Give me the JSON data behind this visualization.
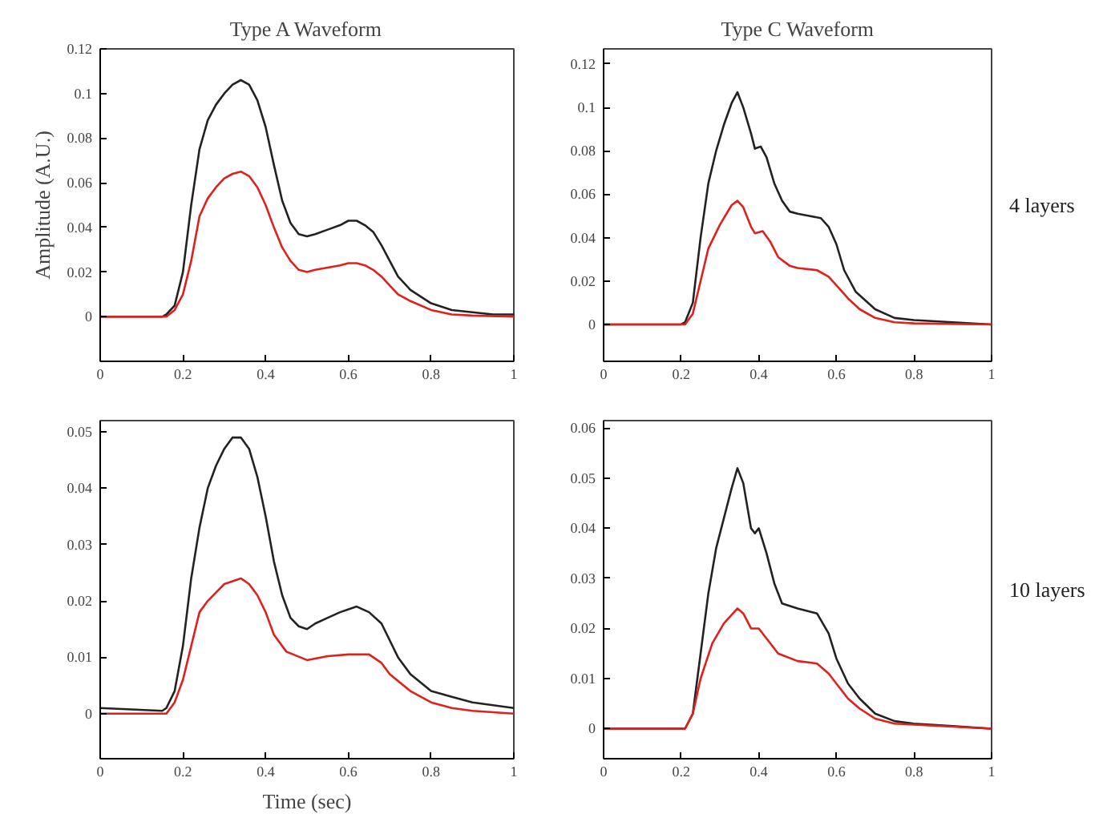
{
  "chart_data": [
    {
      "type": "line",
      "title": "Type A Waveform",
      "ylabel": "Amplitude (A.U.)",
      "xlim": [
        0,
        1
      ],
      "ylim": [
        -0.02,
        0.12
      ],
      "xticks": [
        0,
        0.2,
        0.4,
        0.6,
        0.8,
        1
      ],
      "yticks": [
        0,
        0.02,
        0.04,
        0.06,
        0.08,
        0.1,
        0.12
      ],
      "grid": false,
      "series": [
        {
          "color": "#222222",
          "x": [
            0,
            0.15,
            0.16,
            0.18,
            0.2,
            0.22,
            0.24,
            0.26,
            0.28,
            0.3,
            0.32,
            0.34,
            0.36,
            0.38,
            0.4,
            0.42,
            0.44,
            0.46,
            0.48,
            0.5,
            0.52,
            0.55,
            0.58,
            0.6,
            0.62,
            0.64,
            0.66,
            0.68,
            0.7,
            0.72,
            0.75,
            0.8,
            0.85,
            0.9,
            0.95,
            1
          ],
          "values": [
            0,
            0,
            0.001,
            0.005,
            0.02,
            0.05,
            0.075,
            0.088,
            0.095,
            0.1,
            0.104,
            0.106,
            0.104,
            0.097,
            0.085,
            0.068,
            0.052,
            0.042,
            0.037,
            0.036,
            0.037,
            0.039,
            0.041,
            0.043,
            0.043,
            0.041,
            0.038,
            0.032,
            0.025,
            0.018,
            0.012,
            0.006,
            0.003,
            0.002,
            0.001,
            0.001
          ]
        },
        {
          "color": "#e0201c",
          "x": [
            0,
            0.16,
            0.18,
            0.2,
            0.22,
            0.24,
            0.26,
            0.28,
            0.3,
            0.32,
            0.34,
            0.36,
            0.38,
            0.4,
            0.42,
            0.44,
            0.46,
            0.48,
            0.5,
            0.52,
            0.55,
            0.58,
            0.6,
            0.62,
            0.64,
            0.66,
            0.68,
            0.7,
            0.72,
            0.75,
            0.8,
            0.85,
            0.9,
            1
          ],
          "values": [
            0,
            0,
            0.003,
            0.01,
            0.025,
            0.045,
            0.053,
            0.058,
            0.062,
            0.064,
            0.065,
            0.063,
            0.058,
            0.05,
            0.04,
            0.031,
            0.025,
            0.021,
            0.02,
            0.021,
            0.022,
            0.023,
            0.024,
            0.024,
            0.023,
            0.021,
            0.018,
            0.014,
            0.01,
            0.007,
            0.003,
            0.001,
            0.0005,
            0
          ]
        }
      ]
    },
    {
      "type": "line",
      "title": "Type C Waveform",
      "annotations": [
        "4 layers"
      ],
      "xlim": [
        0,
        1
      ],
      "ylim": [
        -0.017,
        0.127
      ],
      "xticks": [
        0,
        0.2,
        0.4,
        0.6,
        0.8,
        1
      ],
      "yticks": [
        0,
        0.02,
        0.04,
        0.06,
        0.08,
        0.1,
        0.12
      ],
      "grid": false,
      "series": [
        {
          "color": "#222222",
          "x": [
            0,
            0.2,
            0.21,
            0.23,
            0.25,
            0.27,
            0.29,
            0.31,
            0.33,
            0.345,
            0.36,
            0.38,
            0.39,
            0.405,
            0.42,
            0.44,
            0.46,
            0.48,
            0.5,
            0.53,
            0.56,
            0.58,
            0.6,
            0.62,
            0.65,
            0.7,
            0.75,
            0.8,
            0.9,
            1
          ],
          "values": [
            0,
            0,
            0.001,
            0.01,
            0.04,
            0.065,
            0.08,
            0.092,
            0.102,
            0.107,
            0.1,
            0.088,
            0.081,
            0.082,
            0.077,
            0.065,
            0.057,
            0.052,
            0.051,
            0.05,
            0.049,
            0.045,
            0.037,
            0.025,
            0.015,
            0.007,
            0.003,
            0.002,
            0.001,
            0
          ]
        },
        {
          "color": "#e0201c",
          "x": [
            0,
            0.21,
            0.23,
            0.25,
            0.27,
            0.3,
            0.33,
            0.345,
            0.36,
            0.38,
            0.39,
            0.41,
            0.43,
            0.45,
            0.48,
            0.5,
            0.55,
            0.58,
            0.6,
            0.63,
            0.66,
            0.7,
            0.75,
            0.8,
            1
          ],
          "values": [
            0,
            0,
            0.005,
            0.02,
            0.035,
            0.046,
            0.055,
            0.057,
            0.054,
            0.045,
            0.042,
            0.043,
            0.038,
            0.031,
            0.027,
            0.026,
            0.025,
            0.022,
            0.018,
            0.012,
            0.007,
            0.003,
            0.001,
            0.0005,
            0
          ]
        }
      ]
    },
    {
      "type": "line",
      "xlabel": "Time (sec)",
      "xlim": [
        0,
        1
      ],
      "ylim": [
        -0.008,
        0.052
      ],
      "xticks": [
        0,
        0.2,
        0.4,
        0.6,
        0.8,
        1
      ],
      "yticks": [
        0,
        0.01,
        0.02,
        0.03,
        0.04,
        0.05
      ],
      "grid": false,
      "series": [
        {
          "color": "#222222",
          "x": [
            0,
            0.15,
            0.16,
            0.18,
            0.2,
            0.22,
            0.24,
            0.26,
            0.28,
            0.3,
            0.32,
            0.34,
            0.36,
            0.38,
            0.4,
            0.42,
            0.44,
            0.46,
            0.48,
            0.5,
            0.52,
            0.55,
            0.58,
            0.62,
            0.65,
            0.68,
            0.7,
            0.72,
            0.75,
            0.8,
            0.85,
            0.9,
            1
          ],
          "values": [
            0.001,
            0.0005,
            0.001,
            0.004,
            0.012,
            0.024,
            0.033,
            0.04,
            0.044,
            0.047,
            0.049,
            0.049,
            0.047,
            0.042,
            0.035,
            0.027,
            0.021,
            0.017,
            0.0155,
            0.015,
            0.016,
            0.017,
            0.018,
            0.019,
            0.018,
            0.016,
            0.013,
            0.01,
            0.007,
            0.004,
            0.003,
            0.002,
            0.001
          ]
        },
        {
          "color": "#e0201c",
          "x": [
            0,
            0.16,
            0.18,
            0.2,
            0.22,
            0.24,
            0.26,
            0.3,
            0.34,
            0.36,
            0.38,
            0.4,
            0.42,
            0.45,
            0.5,
            0.55,
            0.6,
            0.65,
            0.68,
            0.7,
            0.75,
            0.8,
            0.85,
            0.9,
            1
          ],
          "values": [
            0,
            0,
            0.002,
            0.006,
            0.012,
            0.018,
            0.02,
            0.023,
            0.024,
            0.023,
            0.021,
            0.018,
            0.014,
            0.011,
            0.0095,
            0.0102,
            0.0105,
            0.0105,
            0.009,
            0.007,
            0.004,
            0.002,
            0.001,
            0.0005,
            0
          ]
        }
      ]
    },
    {
      "type": "line",
      "annotations": [
        "10 layers"
      ],
      "xlim": [
        0,
        1
      ],
      "ylim": [
        -0.006,
        0.0615
      ],
      "xticks": [
        0,
        0.2,
        0.4,
        0.6,
        0.8,
        1
      ],
      "yticks": [
        0,
        0.01,
        0.02,
        0.03,
        0.04,
        0.05,
        0.06
      ],
      "grid": false,
      "series": [
        {
          "color": "#222222",
          "x": [
            0,
            0.21,
            0.23,
            0.25,
            0.27,
            0.29,
            0.31,
            0.33,
            0.345,
            0.36,
            0.38,
            0.39,
            0.4,
            0.42,
            0.44,
            0.46,
            0.5,
            0.55,
            0.58,
            0.6,
            0.63,
            0.66,
            0.7,
            0.75,
            0.8,
            0.9,
            1
          ],
          "values": [
            0,
            0,
            0.003,
            0.015,
            0.027,
            0.036,
            0.042,
            0.048,
            0.052,
            0.049,
            0.04,
            0.039,
            0.04,
            0.035,
            0.029,
            0.025,
            0.024,
            0.023,
            0.019,
            0.014,
            0.009,
            0.006,
            0.003,
            0.0015,
            0.001,
            0.0005,
            0
          ]
        },
        {
          "color": "#e0201c",
          "x": [
            0,
            0.21,
            0.23,
            0.25,
            0.28,
            0.31,
            0.345,
            0.36,
            0.38,
            0.4,
            0.42,
            0.45,
            0.5,
            0.55,
            0.58,
            0.6,
            0.63,
            0.66,
            0.7,
            0.75,
            1
          ],
          "values": [
            0,
            0,
            0.003,
            0.01,
            0.017,
            0.021,
            0.024,
            0.023,
            0.02,
            0.02,
            0.018,
            0.015,
            0.0135,
            0.013,
            0.011,
            0.009,
            0.006,
            0.004,
            0.002,
            0.001,
            0
          ]
        }
      ]
    }
  ]
}
